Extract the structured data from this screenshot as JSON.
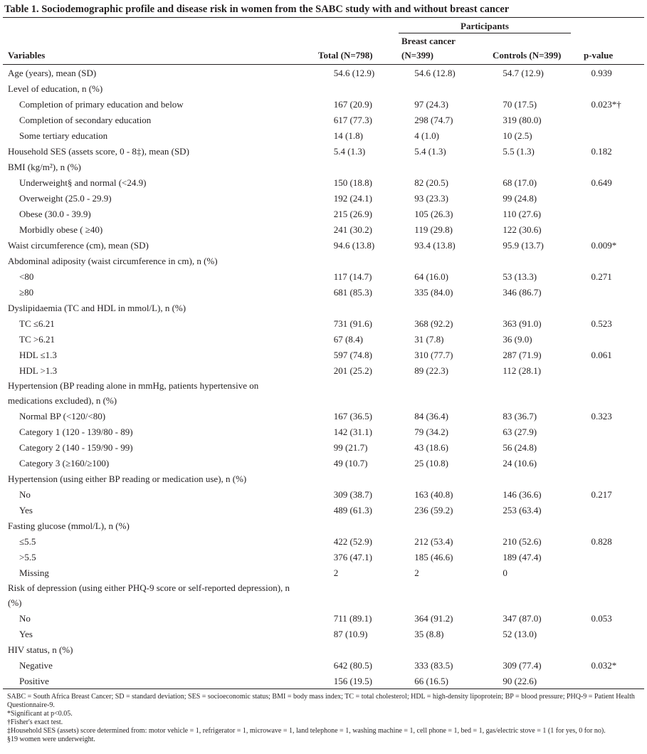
{
  "title": "Table 1. Sociodemographic profile and disease risk in women from the SABC study with and without breast cancer",
  "header": {
    "participants": "Participants",
    "breast_cancer": "Breast cancer",
    "variables": "Variables",
    "total": "Total (N=798)",
    "bc_n": "(N=399)",
    "controls": "Controls (N=399)",
    "p_value": "p-value"
  },
  "table": {
    "rows": [
      {
        "label": "Age (years), mean (SD)",
        "cells": [
          "54.6 (12.9)",
          "54.6 (12.8)",
          "54.7 (12.9)",
          "0.939"
        ]
      },
      {
        "label": "Level of education, n (%)",
        "rows": [
          {
            "label": "Completion of primary education and below",
            "cells": [
              "167 (20.9)",
              "97 (24.3)",
              "70 (17.5)",
              "0.023*†"
            ]
          },
          {
            "label": "Completion of secondary education",
            "cells": [
              "617 (77.3)",
              "298 (74.7)",
              "319 (80.0)",
              null
            ]
          },
          {
            "label": "Some tertiary education",
            "cells": [
              "14 (1.8)",
              "4 (1.0)",
              "10 (2.5)",
              null
            ]
          }
        ]
      },
      {
        "label": "Household SES (assets score, 0 - 8‡), mean (SD)",
        "cells": [
          "5.4 (1.3)",
          "5.4 (1.3)",
          "5.5 (1.3)",
          "0.182"
        ]
      },
      {
        "label": "BMI (kg/m²), n (%)",
        "rows": [
          {
            "label": "Underweight§ and normal (<24.9)",
            "cells": [
              "150 (18.8)",
              "82 (20.5)",
              "68 (17.0)",
              "0.649"
            ]
          },
          {
            "label": "Overweight (25.0 - 29.9)",
            "cells": [
              "192 (24.1)",
              "93 (23.3)",
              "99 (24.8)",
              null
            ]
          },
          {
            "label": "Obese (30.0 - 39.9)",
            "cells": [
              "215 (26.9)",
              "105 (26.3)",
              "110 (27.6)",
              null
            ]
          },
          {
            "label": "Morbidly obese ( ≥40)",
            "cells": [
              "241 (30.2)",
              "119 (29.8)",
              "122 (30.6)",
              null
            ]
          }
        ]
      },
      {
        "label": "Waist circumference (cm), mean (SD)",
        "cells": [
          "94.6 (13.8)",
          "93.4 (13.8)",
          "95.9 (13.7)",
          "0.009*"
        ]
      },
      {
        "label": "Abdominal adiposity (waist circumference in cm), n (%)",
        "rows": [
          {
            "label": "<80",
            "cells": [
              "117 (14.7)",
              "64 (16.0)",
              "53 (13.3)",
              "0.271"
            ]
          },
          {
            "label": "≥80",
            "cells": [
              "681 (85.3)",
              "335 (84.0)",
              "346 (86.7)",
              null
            ]
          }
        ]
      },
      {
        "label": "Dyslipidaemia (TC and HDL in mmol/L), n (%)",
        "rows": [
          {
            "label": "TC ≤6.21",
            "cells": [
              "731 (91.6)",
              "368 (92.2)",
              "363 (91.0)",
              "0.523"
            ]
          },
          {
            "label": "TC >6.21",
            "cells": [
              "67 (8.4)",
              "31 (7.8)",
              "36 (9.0)",
              null
            ]
          },
          {
            "label": "HDL ≤1.3",
            "cells": [
              "597 (74.8)",
              "310 (77.7)",
              "287 (71.9)",
              "0.061"
            ]
          },
          {
            "label": "HDL >1.3",
            "cells": [
              "201 (25.2)",
              "89 (22.3)",
              "112 (28.1)",
              null
            ]
          }
        ]
      },
      {
        "label": "Hypertension (BP reading alone in mmHg, patients hypertensive on medications excluded), n (%)",
        "rows": [
          {
            "label": "Normal BP (<120/<80)",
            "cells": [
              "167 (36.5)",
              "84 (36.4)",
              "83 (36.7)",
              "0.323"
            ]
          },
          {
            "label": "Category 1 (120 - 139/80 - 89)",
            "cells": [
              "142 (31.1)",
              "79 (34.2)",
              "63 (27.9)",
              null
            ]
          },
          {
            "label": "Category 2 (140 - 159/90 - 99)",
            "cells": [
              "99 (21.7)",
              "43 (18.6)",
              "56 (24.8)",
              null
            ]
          },
          {
            "label": "Category 3 (≥160/≥100)",
            "cells": [
              "49 (10.7)",
              "25 (10.8)",
              "24 (10.6)",
              null
            ]
          }
        ]
      },
      {
        "label": "Hypertension (using either BP reading or medication use), n (%)",
        "rows": [
          {
            "label": "No",
            "cells": [
              "309 (38.7)",
              "163 (40.8)",
              "146 (36.6)",
              "0.217"
            ]
          },
          {
            "label": "Yes",
            "cells": [
              "489 (61.3)",
              "236 (59.2)",
              "253 (63.4)",
              null
            ]
          }
        ]
      },
      {
        "label": "Fasting glucose (mmol/L), n (%)",
        "rows": [
          {
            "label": "≤5.5",
            "cells": [
              "422 (52.9)",
              "212 (53.4)",
              "210 (52.6)",
              "0.828"
            ]
          },
          {
            "label": ">5.5",
            "cells": [
              "376 (47.1)",
              "185 (46.6)",
              "189 (47.4)",
              null
            ]
          },
          {
            "label": "Missing",
            "cells": [
              "2",
              "2",
              "0",
              null
            ]
          }
        ]
      },
      {
        "label": "Risk of depression (using either PHQ-9 score or self-reported depression), n (%)",
        "rows": [
          {
            "label": "No",
            "cells": [
              "711 (89.1)",
              "364 (91.2)",
              "347 (87.0)",
              "0.053"
            ]
          },
          {
            "label": "Yes",
            "cells": [
              "87 (10.9)",
              "35 (8.8)",
              "52 (13.0)",
              null
            ]
          }
        ]
      },
      {
        "label": "HIV status, n (%)",
        "rows": [
          {
            "label": "Negative",
            "cells": [
              "642 (80.5)",
              "333 (83.5)",
              "309 (77.4)",
              "0.032*"
            ]
          },
          {
            "label": "Positive",
            "cells": [
              "156 (19.5)",
              "66 (16.5)",
              "90 (22.6)",
              null
            ]
          }
        ]
      }
    ]
  },
  "footnotes": [
    "SABC = South Africa Breast Cancer; SD = standard deviation; SES = socioeconomic status; BMI = body mass index; TC = total cholesterol; HDL = high-density lipoprotein; BP = blood pressure; PHQ-9 = Patient Health Questionnaire-9.",
    "*Significant at p<0.05.",
    "†Fisher's exact test.",
    "‡Household SES (assets) score determined from: motor vehicle = 1, refrigerator = 1, microwave = 1, land telephone = 1, washing machine = 1, cell phone = 1, bed = 1, gas/electric stove = 1 (1 for yes, 0 for no).",
    "§19 women were underweight."
  ]
}
